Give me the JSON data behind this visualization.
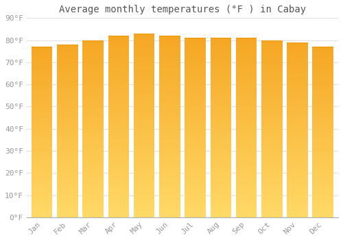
{
  "title": "Average monthly temperatures (°F ) in Cabay",
  "months": [
    "Jan",
    "Feb",
    "Mar",
    "Apr",
    "May",
    "Jun",
    "Jul",
    "Aug",
    "Sep",
    "Oct",
    "Nov",
    "Dec"
  ],
  "values": [
    77,
    78,
    80,
    82,
    83,
    82,
    81,
    81,
    81,
    80,
    79,
    77
  ],
  "bar_color_top": "#F5A623",
  "bar_color_bottom": "#FFD966",
  "background_color": "#FFFFFF",
  "plot_bg_color": "#FFFFFF",
  "grid_color": "#E0E0E0",
  "ylim": [
    0,
    90
  ],
  "yticks": [
    0,
    10,
    20,
    30,
    40,
    50,
    60,
    70,
    80,
    90
  ],
  "ylabel_format": "°F",
  "title_fontsize": 10,
  "tick_fontsize": 8,
  "tick_color": "#999999",
  "title_color": "#555555"
}
